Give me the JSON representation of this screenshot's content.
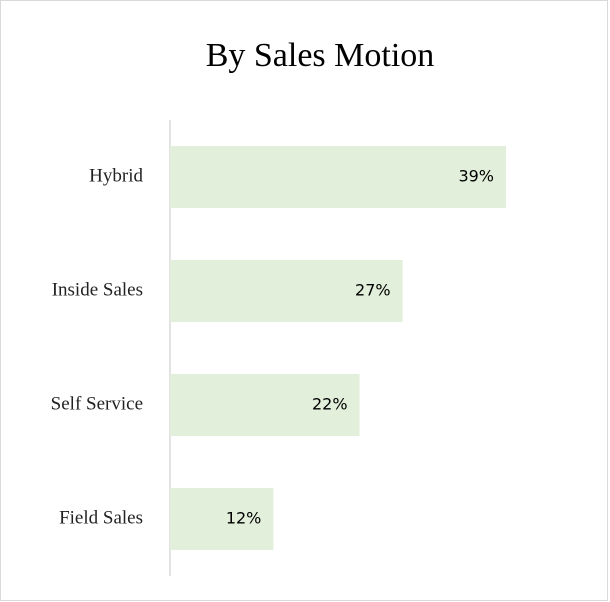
{
  "chart_data": {
    "type": "bar",
    "orientation": "horizontal",
    "title": "By Sales Motion",
    "categories": [
      "Hybrid",
      "Inside Sales",
      "Self Service",
      "Field Sales"
    ],
    "values": [
      39,
      27,
      22,
      12
    ],
    "value_labels": [
      "39%",
      "27%",
      "22%",
      "12%"
    ],
    "color": "#e2efda"
  }
}
